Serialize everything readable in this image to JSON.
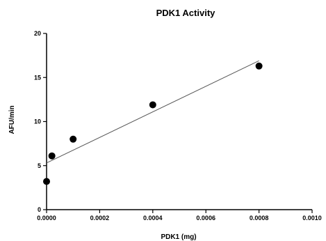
{
  "chart_data": {
    "type": "scatter",
    "title": "PDK1 Activity",
    "xlabel": "PDK1 (mg)",
    "ylabel": "AFU/min",
    "xlim": [
      0,
      0.001
    ],
    "ylim": [
      0,
      20
    ],
    "x_ticks": [
      0,
      0.0002,
      0.0004,
      0.0006,
      0.0008,
      0.001
    ],
    "x_tick_labels": [
      "0.0000",
      "0.0002",
      "0.0004",
      "0.0006",
      "0.0008",
      "0.0010"
    ],
    "y_ticks": [
      0,
      5,
      10,
      15,
      20
    ],
    "y_tick_labels": [
      "0",
      "5",
      "10",
      "15",
      "20"
    ],
    "grid": false,
    "series": [
      {
        "points": [
          {
            "x": 0.0,
            "y": 3.2
          },
          {
            "x": 2e-05,
            "y": 6.1
          },
          {
            "x": 0.0001,
            "y": 8.0
          },
          {
            "x": 0.0004,
            "y": 11.9
          },
          {
            "x": 0.0008,
            "y": 16.3
          }
        ],
        "color": "#000000"
      }
    ],
    "fit_line": {
      "type": "linear",
      "x_range": [
        0,
        0.0008
      ],
      "y_start": 5.3,
      "y_end": 16.9,
      "color": "#555555"
    }
  }
}
